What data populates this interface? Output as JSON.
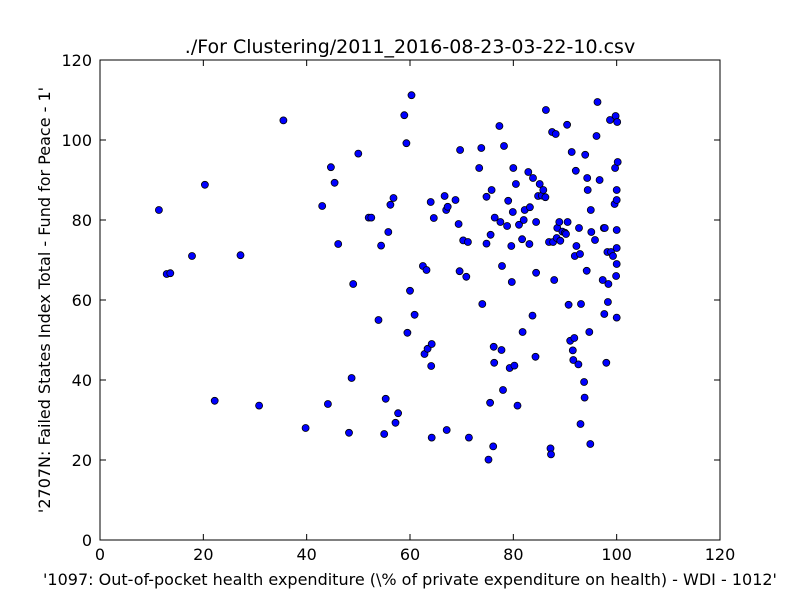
{
  "chart_data": {
    "type": "scatter",
    "title": "./For Clustering/2011_2016-08-23-03-22-10.csv",
    "xlabel": "'1097: Out-of-pocket health expenditure  (\\% of private expenditure on health) - WDI - 1012'",
    "ylabel": "'2707N: Failed States Index Total - Fund for Peace - 1'",
    "xlim": [
      0,
      120
    ],
    "ylim": [
      0,
      120
    ],
    "x_ticks": [
      "0",
      "20",
      "40",
      "60",
      "80",
      "100",
      "120"
    ],
    "y_ticks": [
      "0",
      "20",
      "40",
      "60",
      "80",
      "100",
      "120"
    ],
    "grid": false,
    "marker_color": "#0000ff",
    "marker_edge_color": "#000000",
    "points": [
      [
        11.4,
        82.5
      ],
      [
        12.9,
        66.5
      ],
      [
        13.6,
        66.7
      ],
      [
        17.8,
        71.0
      ],
      [
        20.3,
        88.8
      ],
      [
        22.2,
        34.8
      ],
      [
        27.2,
        71.2
      ],
      [
        30.8,
        33.6
      ],
      [
        35.5,
        104.9
      ],
      [
        39.8,
        28.0
      ],
      [
        43.0,
        83.5
      ],
      [
        44.1,
        34.0
      ],
      [
        44.7,
        93.2
      ],
      [
        45.4,
        89.3
      ],
      [
        46.1,
        74.0
      ],
      [
        48.2,
        26.8
      ],
      [
        48.7,
        40.5
      ],
      [
        49.0,
        64.0
      ],
      [
        50.0,
        96.6
      ],
      [
        52.0,
        80.6
      ],
      [
        52.5,
        80.6
      ],
      [
        53.9,
        55.0
      ],
      [
        54.4,
        73.6
      ],
      [
        55.0,
        26.5
      ],
      [
        55.3,
        35.3
      ],
      [
        55.8,
        77.0
      ],
      [
        56.2,
        83.8
      ],
      [
        56.8,
        85.5
      ],
      [
        57.2,
        29.3
      ],
      [
        57.7,
        31.7
      ],
      [
        58.9,
        106.2
      ],
      [
        59.3,
        99.2
      ],
      [
        59.5,
        51.8
      ],
      [
        60.0,
        62.3
      ],
      [
        60.3,
        111.2
      ],
      [
        60.9,
        56.3
      ],
      [
        62.5,
        68.5
      ],
      [
        62.8,
        46.5
      ],
      [
        63.2,
        67.5
      ],
      [
        63.4,
        47.8
      ],
      [
        64.0,
        84.5
      ],
      [
        64.1,
        43.5
      ],
      [
        64.2,
        49.0
      ],
      [
        64.2,
        25.6
      ],
      [
        64.6,
        80.5
      ],
      [
        66.7,
        86.0
      ],
      [
        67.0,
        82.5
      ],
      [
        67.1,
        27.5
      ],
      [
        67.3,
        83.3
      ],
      [
        68.8,
        85.0
      ],
      [
        69.4,
        79.0
      ],
      [
        69.6,
        67.2
      ],
      [
        69.7,
        97.5
      ],
      [
        70.3,
        74.9
      ],
      [
        70.9,
        65.8
      ],
      [
        71.2,
        74.5
      ],
      [
        71.4,
        25.6
      ],
      [
        73.4,
        93.0
      ],
      [
        73.8,
        98.0
      ],
      [
        74.0,
        59.0
      ],
      [
        74.8,
        85.8
      ],
      [
        74.8,
        74.1
      ],
      [
        75.2,
        20.1
      ],
      [
        75.5,
        34.3
      ],
      [
        75.6,
        76.3
      ],
      [
        75.8,
        87.5
      ],
      [
        76.1,
        23.4
      ],
      [
        76.2,
        48.3
      ],
      [
        76.3,
        44.3
      ],
      [
        76.4,
        80.6
      ],
      [
        77.3,
        103.5
      ],
      [
        77.5,
        79.5
      ],
      [
        77.7,
        47.5
      ],
      [
        77.8,
        68.5
      ],
      [
        78.0,
        37.5
      ],
      [
        78.2,
        98.5
      ],
      [
        78.8,
        78.5
      ],
      [
        79.0,
        84.8
      ],
      [
        79.3,
        43.0
      ],
      [
        79.6,
        73.5
      ],
      [
        79.7,
        64.5
      ],
      [
        79.9,
        82.0
      ],
      [
        80.0,
        93.0
      ],
      [
        80.2,
        43.6
      ],
      [
        80.5,
        89.0
      ],
      [
        80.8,
        33.6
      ],
      [
        81.1,
        78.8
      ],
      [
        81.7,
        75.2
      ],
      [
        81.8,
        52.0
      ],
      [
        82.0,
        80.0
      ],
      [
        82.2,
        82.5
      ],
      [
        82.9,
        92.0
      ],
      [
        83.1,
        74.0
      ],
      [
        83.2,
        83.2
      ],
      [
        83.7,
        56.1
      ],
      [
        83.8,
        90.5
      ],
      [
        84.3,
        45.8
      ],
      [
        84.4,
        66.8
      ],
      [
        84.4,
        79.5
      ],
      [
        84.8,
        86.0
      ],
      [
        85.1,
        89.0
      ],
      [
        85.5,
        86.1
      ],
      [
        85.8,
        87.5
      ],
      [
        86.2,
        85.7
      ],
      [
        86.3,
        107.5
      ],
      [
        86.9,
        74.5
      ],
      [
        87.2,
        22.9
      ],
      [
        87.3,
        21.4
      ],
      [
        87.5,
        102.0
      ],
      [
        87.7,
        74.5
      ],
      [
        87.9,
        65.0
      ],
      [
        88.2,
        101.5
      ],
      [
        88.4,
        75.5
      ],
      [
        88.5,
        78.0
      ],
      [
        88.9,
        79.5
      ],
      [
        89.1,
        74.8
      ],
      [
        89.5,
        77.1
      ],
      [
        90.0,
        76.8
      ],
      [
        90.2,
        76.5
      ],
      [
        90.4,
        103.8
      ],
      [
        90.5,
        79.5
      ],
      [
        90.7,
        58.8
      ],
      [
        91.0,
        49.8
      ],
      [
        91.3,
        97.0
      ],
      [
        91.5,
        47.4
      ],
      [
        91.6,
        45.0
      ],
      [
        91.8,
        50.5
      ],
      [
        91.9,
        71.0
      ],
      [
        92.1,
        92.3
      ],
      [
        92.2,
        73.5
      ],
      [
        92.6,
        43.9
      ],
      [
        92.7,
        78.0
      ],
      [
        92.9,
        71.5
      ],
      [
        93.0,
        29.0
      ],
      [
        93.1,
        59.0
      ],
      [
        93.7,
        39.5
      ],
      [
        93.8,
        35.6
      ],
      [
        93.9,
        96.3
      ],
      [
        94.2,
        67.3
      ],
      [
        94.3,
        90.5
      ],
      [
        94.4,
        87.5
      ],
      [
        94.7,
        52.0
      ],
      [
        94.9,
        24.0
      ],
      [
        95.0,
        82.5
      ],
      [
        95.1,
        77.0
      ],
      [
        95.8,
        75.0
      ],
      [
        96.1,
        101.0
      ],
      [
        96.3,
        109.5
      ],
      [
        96.7,
        90.0
      ],
      [
        97.3,
        65.0
      ],
      [
        97.5,
        78.0
      ],
      [
        97.6,
        56.5
      ],
      [
        97.7,
        78.0
      ],
      [
        98.0,
        44.3
      ],
      [
        98.2,
        72.0
      ],
      [
        98.3,
        59.5
      ],
      [
        98.4,
        64.0
      ],
      [
        98.7,
        105.0
      ],
      [
        98.9,
        72.0
      ],
      [
        99.3,
        71.0
      ],
      [
        99.6,
        84.0
      ],
      [
        99.7,
        93.0
      ],
      [
        99.8,
        106.0
      ],
      [
        99.9,
        66.0
      ],
      [
        100.0,
        87.5
      ],
      [
        100.0,
        85.0
      ],
      [
        100.0,
        69.0
      ],
      [
        100.0,
        77.5
      ],
      [
        100.0,
        73.0
      ],
      [
        100.0,
        55.6
      ],
      [
        100.1,
        104.5
      ],
      [
        100.2,
        94.5
      ]
    ]
  }
}
